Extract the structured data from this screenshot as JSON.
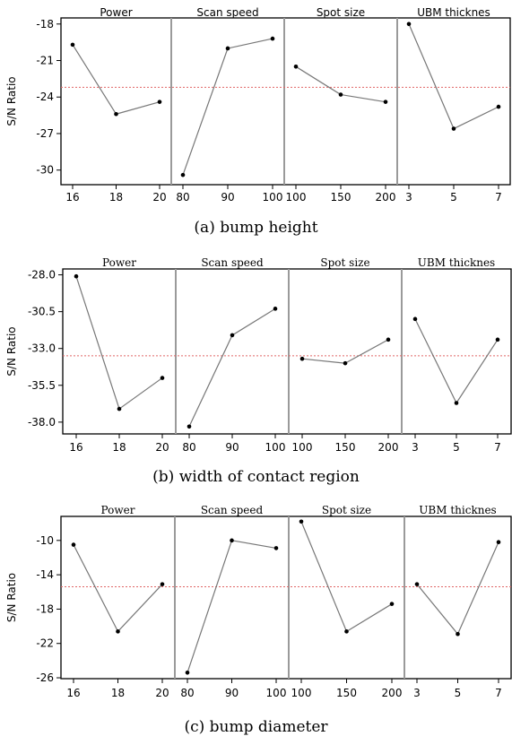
{
  "chart_data": [
    {
      "type": "line",
      "caption": "(a) bump height",
      "ylabel": "S/N Ratio",
      "ylim": [
        -31.2,
        -17.5
      ],
      "yticks": [
        -18,
        -21,
        -24,
        -27,
        -30
      ],
      "ytick_labels": [
        "-18",
        "-21",
        "-24",
        "-27",
        "-30"
      ],
      "mean_line": -23.2,
      "mean_line_color": "#e06666",
      "series_color": "#777777",
      "panels": [
        {
          "name": "Power",
          "x": [
            "16",
            "18",
            "20"
          ],
          "values": [
            -19.7,
            -25.4,
            -24.4
          ]
        },
        {
          "name": "Scan speed",
          "x": [
            "80",
            "90",
            "100"
          ],
          "values": [
            -30.4,
            -20.0,
            -19.2
          ]
        },
        {
          "name": "Spot size",
          "x": [
            "100",
            "150",
            "200"
          ],
          "values": [
            -21.5,
            -23.8,
            -24.4
          ]
        },
        {
          "name": "UBM  thicknes",
          "x": [
            "3",
            "5",
            "7"
          ],
          "values": [
            -18.0,
            -26.6,
            -24.8
          ]
        }
      ]
    },
    {
      "type": "line",
      "caption": "(b) width of contact region",
      "ylabel": "S/N Ratio",
      "ylim": [
        -38.8,
        -27.6
      ],
      "yticks": [
        -28.0,
        -30.5,
        -33.0,
        -35.5,
        -38.0
      ],
      "ytick_labels": [
        "-28.0",
        "-30.5",
        "-33.0",
        "-35.5",
        "-38.0"
      ],
      "mean_line": -33.5,
      "mean_line_color": "#e06666",
      "series_color": "#777777",
      "panels": [
        {
          "name": "Power",
          "x": [
            "16",
            "18",
            "20"
          ],
          "values": [
            -28.1,
            -37.1,
            -35.0
          ]
        },
        {
          "name": "Scan speed",
          "x": [
            "80",
            "90",
            "100"
          ],
          "values": [
            -38.3,
            -32.1,
            -30.3
          ]
        },
        {
          "name": "Spot size",
          "x": [
            "100",
            "150",
            "200"
          ],
          "values": [
            -33.7,
            -34.0,
            -32.4
          ]
        },
        {
          "name": "UBM  thicknes",
          "x": [
            "3",
            "5",
            "7"
          ],
          "values": [
            -31.0,
            -36.7,
            -32.4
          ]
        }
      ]
    },
    {
      "type": "line",
      "caption": "(c) bump diameter",
      "ylabel": "S/N Ratio",
      "ylim": [
        -26.1,
        -7.2
      ],
      "yticks": [
        -10,
        -14,
        -18,
        -22,
        -26
      ],
      "ytick_labels": [
        "-10",
        "-14",
        "-18",
        "-22",
        "-26"
      ],
      "mean_line": -15.4,
      "mean_line_color": "#e06666",
      "series_color": "#777777",
      "panels": [
        {
          "name": "Power",
          "x": [
            "16",
            "18",
            "20"
          ],
          "values": [
            -10.5,
            -20.6,
            -15.1
          ]
        },
        {
          "name": "Scan speed",
          "x": [
            "80",
            "90",
            "100"
          ],
          "values": [
            -25.4,
            -10.0,
            -10.9
          ]
        },
        {
          "name": "Spot size",
          "x": [
            "100",
            "150",
            "200"
          ],
          "values": [
            -7.8,
            -20.6,
            -17.4
          ]
        },
        {
          "name": "UBM  thicknes",
          "x": [
            "3",
            "5",
            "7"
          ],
          "values": [
            -15.1,
            -20.9,
            -10.2
          ]
        }
      ]
    }
  ]
}
